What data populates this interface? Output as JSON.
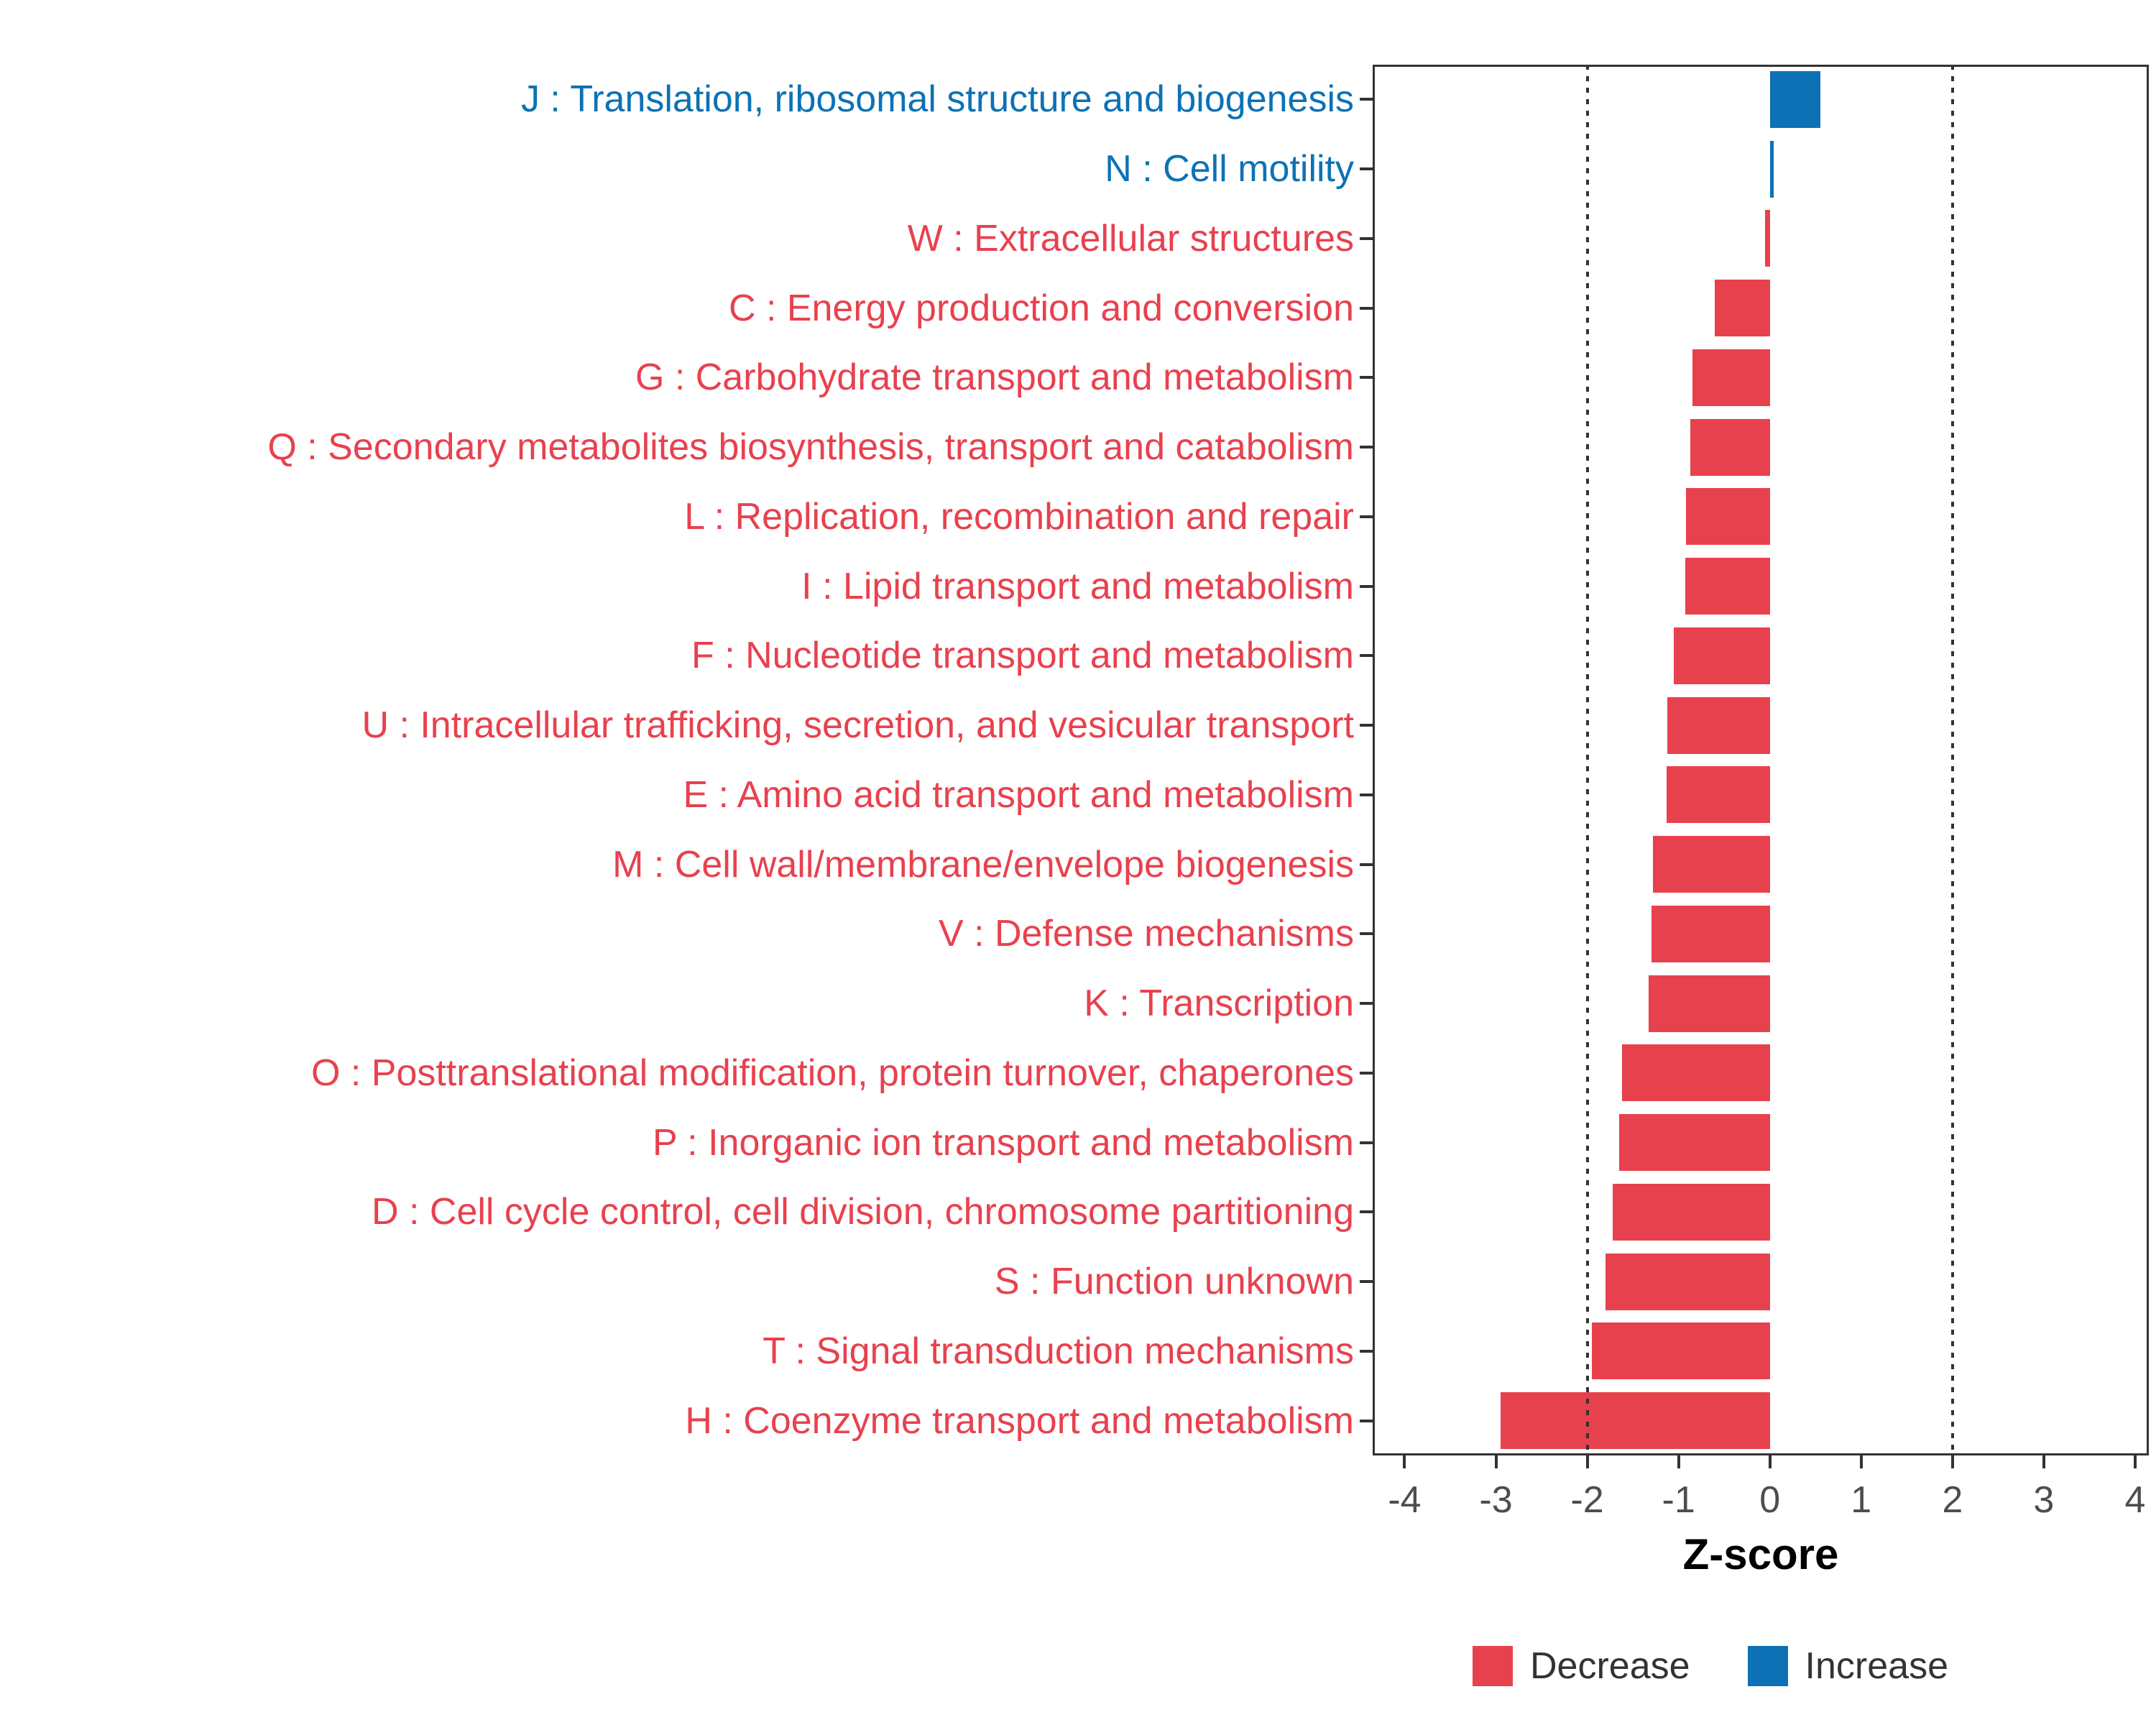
{
  "chart_data": {
    "type": "bar",
    "orientation": "horizontal",
    "title": "",
    "xlabel": "Z-score",
    "ylabel": "",
    "xlim": [
      -4.35,
      4.15
    ],
    "x_ticks": [
      -4,
      -3,
      -2,
      -1,
      0,
      1,
      2,
      3,
      4
    ],
    "reference_lines": [
      -2,
      2
    ],
    "grid": false,
    "legend_position": "bottom",
    "colors": {
      "decrease": "#E8414E",
      "increase": "#0C72B5"
    },
    "legend": [
      {
        "label": "Decrease",
        "color": "#E8414E"
      },
      {
        "label": "Increase",
        "color": "#0C72B5"
      }
    ],
    "categories": [
      {
        "label": "J : Translation, ribosomal structure and biogenesis",
        "value": 0.55,
        "direction": "increase"
      },
      {
        "label": "N : Cell motility",
        "value": 0.04,
        "direction": "increase"
      },
      {
        "label": "W : Extracellular structures",
        "value": -0.05,
        "direction": "decrease"
      },
      {
        "label": "C : Energy production and conversion",
        "value": -0.6,
        "direction": "decrease"
      },
      {
        "label": "G : Carbohydrate transport and metabolism",
        "value": -0.85,
        "direction": "decrease"
      },
      {
        "label": "Q : Secondary metabolites biosynthesis, transport and catabolism",
        "value": -0.87,
        "direction": "decrease"
      },
      {
        "label": "L : Replication, recombination and repair",
        "value": -0.92,
        "direction": "decrease"
      },
      {
        "label": "I : Lipid transport and metabolism",
        "value": -0.93,
        "direction": "decrease"
      },
      {
        "label": "F : Nucleotide transport and metabolism",
        "value": -1.05,
        "direction": "decrease"
      },
      {
        "label": "U : Intracellular trafficking, secretion, and vesicular transport",
        "value": -1.12,
        "direction": "decrease"
      },
      {
        "label": "E : Amino acid transport and metabolism",
        "value": -1.13,
        "direction": "decrease"
      },
      {
        "label": "M : Cell wall/membrane/envelope biogenesis",
        "value": -1.28,
        "direction": "decrease"
      },
      {
        "label": "V : Defense mechanisms",
        "value": -1.3,
        "direction": "decrease"
      },
      {
        "label": "K : Transcription",
        "value": -1.33,
        "direction": "decrease"
      },
      {
        "label": "O : Posttranslational modification, protein turnover, chaperones",
        "value": -1.62,
        "direction": "decrease"
      },
      {
        "label": "P : Inorganic ion transport and metabolism",
        "value": -1.65,
        "direction": "decrease"
      },
      {
        "label": "D : Cell cycle control, cell division, chromosome partitioning",
        "value": -1.72,
        "direction": "decrease"
      },
      {
        "label": "S : Function unknown",
        "value": -1.8,
        "direction": "decrease"
      },
      {
        "label": "T : Signal transduction mechanisms",
        "value": -1.95,
        "direction": "decrease"
      },
      {
        "label": "H : Coenzyme transport and metabolism",
        "value": -2.95,
        "direction": "decrease"
      }
    ]
  }
}
